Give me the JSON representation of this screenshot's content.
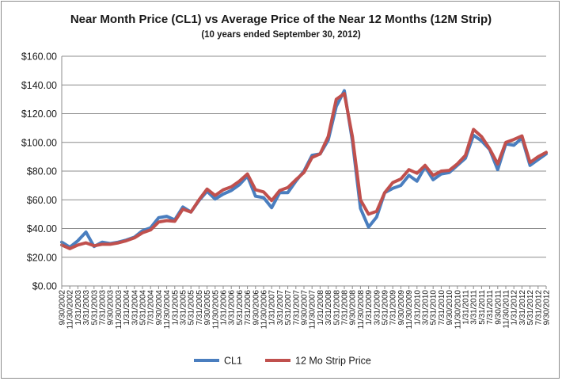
{
  "chart_data": {
    "type": "line",
    "title": "Near Month Price (CL1) vs Average Price of the Near 12 Months (12M Strip)",
    "subtitle": "(10 years ended September 30, 2012)",
    "ylim": [
      0,
      160
    ],
    "y_ticks": [
      "$0.00",
      "$20.00",
      "$40.00",
      "$60.00",
      "$80.00",
      "$100.00",
      "$120.00",
      "$140.00",
      "$160.00"
    ],
    "y_tick_values": [
      0,
      20,
      40,
      60,
      80,
      100,
      120,
      140,
      160
    ],
    "x_ticks": [
      "9/30/2002",
      "11/30/2002",
      "1/31/2003",
      "3/31/2003",
      "5/31/2003",
      "7/31/2003",
      "9/30/2003",
      "11/30/2003",
      "1/31/2004",
      "3/31/2004",
      "5/31/2004",
      "7/31/2004",
      "9/30/2004",
      "11/30/2004",
      "1/31/2005",
      "3/31/2005",
      "5/31/2005",
      "7/31/2005",
      "9/30/2005",
      "11/30/2005",
      "1/31/2006",
      "3/31/2006",
      "5/31/2006",
      "7/31/2006",
      "9/30/2006",
      "11/30/2006",
      "1/31/2007",
      "3/31/2007",
      "5/31/2007",
      "7/31/2007",
      "9/30/2007",
      "11/30/2007",
      "1/31/2008",
      "3/31/2008",
      "5/31/2008",
      "7/31/2008",
      "9/30/2008",
      "11/30/2008",
      "1/31/2009",
      "3/31/2009",
      "5/31/2009",
      "7/31/2009",
      "9/30/2009",
      "11/30/2009",
      "1/31/2010",
      "3/31/2010",
      "5/31/2010",
      "7/31/2010",
      "9/30/2010",
      "11/30/2010",
      "1/31/2011",
      "3/31/2011",
      "5/31/2011",
      "7/31/2011",
      "9/30/2011",
      "11/30/2011",
      "1/31/2012",
      "3/31/2012",
      "5/31/2012",
      "7/31/2012",
      "9/30/2012"
    ],
    "grid": true,
    "legend_position": "bottom",
    "colors": {
      "CL1": "#4a7ebf",
      "12 Mo Strip Price": "#c0504d"
    },
    "series": [
      {
        "name": "CL1",
        "values": [
          30.5,
          27.0,
          31.5,
          37.5,
          27.5,
          30.5,
          29.5,
          30.5,
          32.0,
          34.0,
          38.5,
          40.5,
          47.5,
          48.5,
          46.0,
          55.0,
          51.5,
          59.5,
          66.0,
          60.5,
          64.0,
          66.5,
          70.5,
          76.5,
          62.5,
          61.5,
          54.5,
          65.0,
          65.0,
          73.0,
          80.0,
          91.0,
          92.0,
          101.5,
          125.0,
          136.0,
          101.0,
          54.0,
          41.0,
          48.0,
          65.0,
          68.0,
          70.0,
          77.0,
          73.0,
          83.0,
          74.0,
          78.0,
          79.0,
          84.0,
          89.0,
          105.0,
          101.0,
          95.0,
          81.0,
          99.0,
          98.0,
          103.0,
          84.0,
          88.0,
          92.0
        ]
      },
      {
        "name": "12 Mo Strip Price",
        "values": [
          28.5,
          26.0,
          28.5,
          30.0,
          28.0,
          29.0,
          29.0,
          30.0,
          31.5,
          33.5,
          37.0,
          39.0,
          44.5,
          45.5,
          45.0,
          53.5,
          51.5,
          60.0,
          67.5,
          63.0,
          67.0,
          69.0,
          73.0,
          78.0,
          67.0,
          65.5,
          59.5,
          66.5,
          68.5,
          74.0,
          79.0,
          89.5,
          92.0,
          104.0,
          130.0,
          134.0,
          104.0,
          60.0,
          50.0,
          52.0,
          65.0,
          72.0,
          74.5,
          81.0,
          78.5,
          84.0,
          77.0,
          80.0,
          80.5,
          85.0,
          91.0,
          109.0,
          104.0,
          95.5,
          85.0,
          100.0,
          102.0,
          104.5,
          86.0,
          90.0,
          93.0
        ]
      }
    ]
  }
}
